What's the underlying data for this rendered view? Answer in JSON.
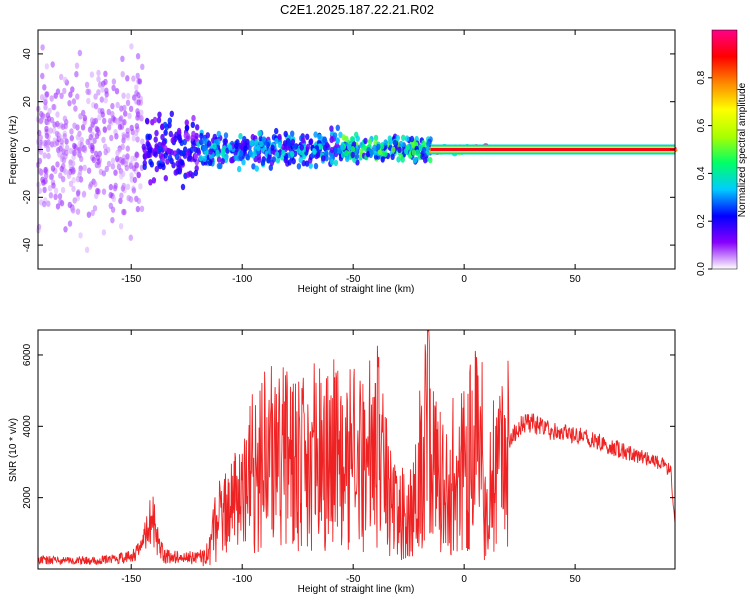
{
  "title": "C2E1.2025.187.22.21.R02",
  "colors": {
    "axis": "#000000",
    "snr_line": "#ee2222",
    "spectrum_low": "#8822ff",
    "spectrum_mid": "#00ee88",
    "spectrum_high": "#ff2222"
  },
  "chart_data": [
    {
      "type": "heatmap",
      "title": "",
      "xlabel": "Height of straight line (km)",
      "ylabel": "Frequency (Hz)",
      "xlim": [
        -192,
        95
      ],
      "ylim": [
        -50,
        50
      ],
      "xticks": [
        -150,
        -100,
        -50,
        0,
        50
      ],
      "yticks": [
        -40,
        -20,
        0,
        20,
        40
      ],
      "xtick_labels": [
        "-150",
        "-100",
        "-50",
        "0",
        "50"
      ],
      "ytick_labels": [
        "-40",
        "-20",
        "0",
        "20",
        "40"
      ],
      "colorbar": {
        "label": "Normalized spectral amplitude",
        "range": [
          0,
          1
        ],
        "ticks": [
          0.0,
          0.2,
          0.4,
          0.6,
          0.8
        ],
        "tick_labels": [
          "0.0",
          "0.2",
          "0.4",
          "0.6",
          "0.8"
        ],
        "colormap": [
          "#ffffff",
          "#8800ff",
          "#0000ff",
          "#00ccff",
          "#00ff66",
          "#aaff00",
          "#ffff00",
          "#ff8800",
          "#ff0000",
          "#ff0088"
        ]
      },
      "regions": [
        {
          "x": [
            -192,
            -145
          ],
          "freq_spread": 50,
          "amplitude": 0.08
        },
        {
          "x": [
            -145,
            -120
          ],
          "freq_spread": 20,
          "amplitude": 0.2
        },
        {
          "x": [
            -120,
            -55
          ],
          "freq_spread": 10,
          "amplitude": 0.3
        },
        {
          "x": [
            -55,
            -15
          ],
          "freq_spread": 7,
          "amplitude": 0.4
        },
        {
          "x": [
            -15,
            15
          ],
          "freq_spread": 2.5,
          "amplitude": 0.8
        },
        {
          "x": [
            15,
            95
          ],
          "freq_spread": 1.5,
          "amplitude": 0.9
        }
      ]
    },
    {
      "type": "line",
      "title": "",
      "xlabel": "Height of straight line (km)",
      "ylabel": "SNR (10 * v/v)",
      "xlim": [
        -192,
        95
      ],
      "ylim": [
        0,
        6700
      ],
      "xticks": [
        -150,
        -100,
        -50,
        0,
        50
      ],
      "yticks": [
        2000,
        4000,
        6000
      ],
      "xtick_labels": [
        "-150",
        "-100",
        "-50",
        "0",
        "50"
      ],
      "ytick_labels": [
        "2000",
        "4000",
        "6000"
      ],
      "series": [
        {
          "x": [
            -192,
            -180,
            -160,
            -150,
            -145,
            -142,
            -140,
            -138,
            -135,
            -125,
            -120,
            -115,
            -112,
            -110,
            -105,
            -100,
            -95,
            -90,
            -85,
            -80,
            -75,
            -70,
            -65,
            -60,
            -55,
            -50,
            -45,
            -40,
            -35,
            -30,
            -25,
            -20,
            -17,
            -15,
            -12,
            -10,
            -8,
            -5,
            0,
            5,
            8,
            10,
            12,
            15,
            20,
            25,
            30,
            35,
            40,
            45,
            50,
            55,
            60,
            65,
            70,
            75,
            80,
            85,
            90,
            93,
            95
          ],
          "y": [
            250,
            230,
            260,
            350,
            600,
            1200,
            1600,
            700,
            350,
            320,
            300,
            450,
            1200,
            1400,
            1700,
            2400,
            2800,
            3000,
            3200,
            3100,
            2900,
            3100,
            3200,
            3300,
            3000,
            3100,
            2800,
            3600,
            2500,
            1500,
            1600,
            2100,
            4400,
            3300,
            2600,
            2300,
            2200,
            2700,
            2900,
            3600,
            2100,
            1200,
            2300,
            3000,
            3600,
            4000,
            4100,
            4000,
            3850,
            3800,
            3750,
            3700,
            3600,
            3450,
            3350,
            3250,
            3150,
            3050,
            2900,
            2800,
            1200
          ],
          "peaks": [
            {
              "x": -92,
              "y": 5000
            },
            {
              "x": -80,
              "y": 4700
            },
            {
              "x": -40,
              "y": 5200
            },
            {
              "x": -20,
              "y": 5000
            },
            {
              "x": -16,
              "y": 6700
            },
            {
              "x": -13,
              "y": 4500
            },
            {
              "x": 8,
              "y": 5800
            }
          ]
        }
      ]
    }
  ]
}
